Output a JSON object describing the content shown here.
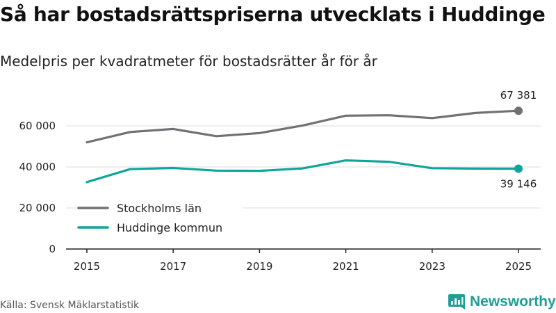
{
  "title": "Så har bostadsrättspriserna utvecklats i Huddinge",
  "subtitle": "Medelpris per kvadratmeter för bostadsrätter år för år",
  "source": "Källa: Svensk Mäklarstatistik",
  "brand": {
    "name": "Newsworthy",
    "icon": "newsworthy-chart-icon",
    "color": "#1e9e96"
  },
  "colors": {
    "stockholm": "#717075",
    "huddinge": "#0ea69a",
    "grid": "#dddddd",
    "axis": "#222222"
  },
  "chart_data": {
    "type": "line",
    "title": "Så har bostadsrättspriserna utvecklats i Huddinge",
    "xlabel": "",
    "ylabel": "",
    "x": [
      2015,
      2016,
      2017,
      2018,
      2019,
      2020,
      2021,
      2022,
      2023,
      2024,
      2025
    ],
    "xticks": [
      "2015",
      "2017",
      "2019",
      "2021",
      "2023",
      "2025"
    ],
    "yticks": [
      "0",
      "20 000",
      "40 000",
      "60 000"
    ],
    "ylim": [
      0,
      70000
    ],
    "legend_position": "bottom-left",
    "series": [
      {
        "name": "Stockholms län",
        "key": "stockholm",
        "values": [
          52000,
          57000,
          58500,
          55000,
          56500,
          60200,
          65000,
          65200,
          63800,
          66300,
          67381
        ],
        "end_label": "67 381"
      },
      {
        "name": "Huddinge kommun",
        "key": "huddinge",
        "values": [
          32600,
          38900,
          39500,
          38200,
          38100,
          39300,
          43200,
          42500,
          39400,
          39200,
          39146
        ],
        "end_label": "39 146"
      }
    ]
  }
}
